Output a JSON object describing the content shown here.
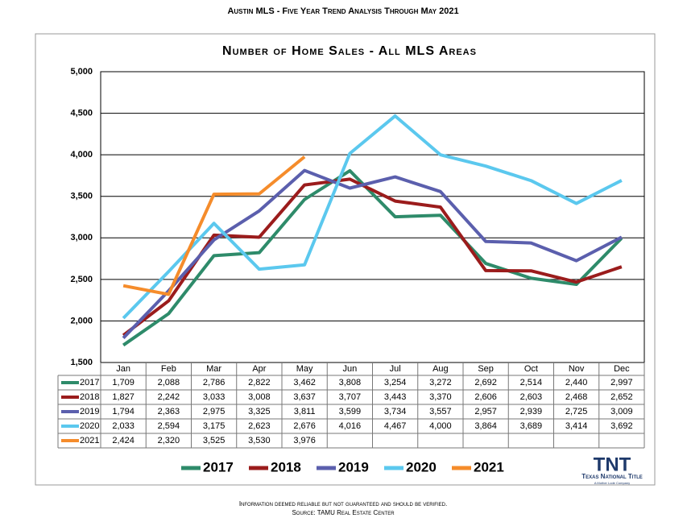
{
  "header": "Austin MLS - Five Year Trend Analysis Through May 2021",
  "chart_data": {
    "type": "line",
    "title": "Number of Home Sales - All MLS Areas",
    "categories": [
      "Jan",
      "Feb",
      "Mar",
      "Apr",
      "May",
      "Jun",
      "Jul",
      "Aug",
      "Sep",
      "Oct",
      "Nov",
      "Dec"
    ],
    "series": [
      {
        "name": "2017",
        "color": "#2e8b6a",
        "values": [
          1709,
          2088,
          2786,
          2822,
          3462,
          3808,
          3254,
          3272,
          2692,
          2514,
          2440,
          2997
        ],
        "value_labels": [
          "1,709",
          "2,088",
          "2,786",
          "2,822",
          "3,462",
          "3,808",
          "3,254",
          "3,272",
          "2,692",
          "2,514",
          "2,440",
          "2,997"
        ]
      },
      {
        "name": "2018",
        "color": "#9b1c1c",
        "values": [
          1827,
          2242,
          3033,
          3008,
          3637,
          3707,
          3443,
          3370,
          2606,
          2603,
          2468,
          2652
        ],
        "value_labels": [
          "1,827",
          "2,242",
          "3,033",
          "3,008",
          "3,637",
          "3,707",
          "3,443",
          "3,370",
          "2,606",
          "2,603",
          "2,468",
          "2,652"
        ]
      },
      {
        "name": "2019",
        "color": "#5b5fad",
        "values": [
          1794,
          2363,
          2975,
          3325,
          3811,
          3599,
          3734,
          3557,
          2957,
          2939,
          2725,
          3009
        ],
        "value_labels": [
          "1,794",
          "2,363",
          "2,975",
          "3,325",
          "3,811",
          "3,599",
          "3,734",
          "3,557",
          "2,957",
          "2,939",
          "2,725",
          "3,009"
        ]
      },
      {
        "name": "2020",
        "color": "#5bc8ee",
        "values": [
          2033,
          2594,
          3175,
          2623,
          2676,
          4016,
          4467,
          4000,
          3864,
          3689,
          3414,
          3692
        ],
        "value_labels": [
          "2,033",
          "2,594",
          "3,175",
          "2,623",
          "2,676",
          "4,016",
          "4,467",
          "4,000",
          "3,864",
          "3,689",
          "3,414",
          "3,692"
        ]
      },
      {
        "name": "2021",
        "color": "#f58c2b",
        "values": [
          2424,
          2320,
          3525,
          3530,
          3976,
          null,
          null,
          null,
          null,
          null,
          null,
          null
        ],
        "value_labels": [
          "2,424",
          "2,320",
          "3,525",
          "3,530",
          "3,976",
          null,
          null,
          null,
          null,
          null,
          null,
          null
        ]
      }
    ],
    "ylim": [
      1500,
      5000
    ],
    "yticks": [
      {
        "value": 1500,
        "label": "1,500"
      },
      {
        "value": 2000,
        "label": "2,000"
      },
      {
        "value": 2500,
        "label": "2,500"
      },
      {
        "value": 3000,
        "label": "3,000"
      },
      {
        "value": 3500,
        "label": "3,500"
      },
      {
        "value": 4000,
        "label": "4,000"
      },
      {
        "value": 4500,
        "label": "4,500"
      },
      {
        "value": 5000,
        "label": "5,000"
      }
    ],
    "grid": true
  },
  "logo": {
    "mark": "TNT",
    "name": "Texas National Title",
    "tagline": "A Mother Lode Company"
  },
  "footer": [
    "Information deemed reliable but not guaranteed and should be verified.",
    "Source: TAMU Real Estate Center"
  ]
}
